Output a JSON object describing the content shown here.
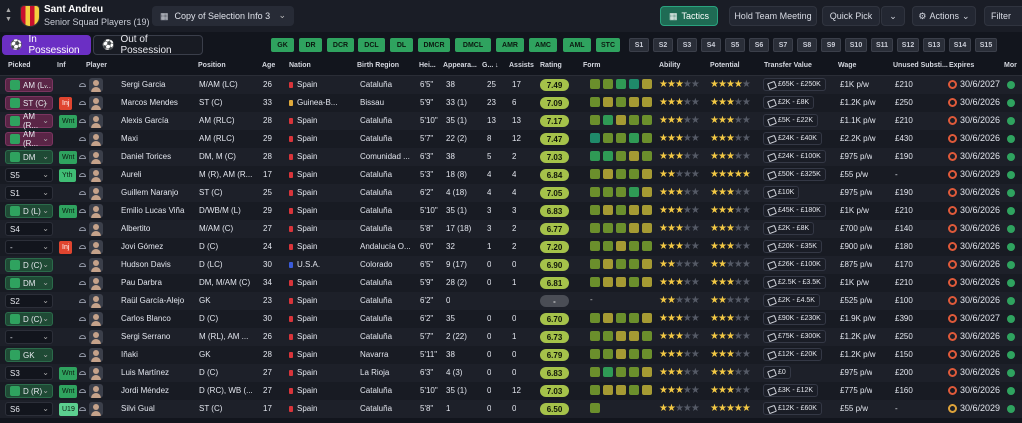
{
  "header": {
    "club": "Sant Andreu",
    "squad_select": "Senior Squad Players (19)",
    "view_select": "Copy of Selection Info 3",
    "tactics": "Tactics",
    "hold_meeting": "Hold Team Meeting",
    "quick_pick": "Quick Pick",
    "actions": "Actions",
    "filter": "Filter"
  },
  "tabs": {
    "in_possession": "In Possession",
    "out_possession": "Out of Possession"
  },
  "positions": {
    "highlighted": [
      "GK",
      "DR",
      "DCR",
      "DCL",
      "DL",
      "DMCR",
      "DMCL",
      "AMR",
      "AMC",
      "AML",
      "STC"
    ],
    "slots": [
      "S1",
      "S2",
      "S3",
      "S4",
      "S5",
      "S6",
      "S7",
      "S8",
      "S9",
      "S10",
      "S11",
      "S12",
      "S13",
      "S14",
      "S15"
    ]
  },
  "columns": {
    "picked": "Picked",
    "inf": "Inf",
    "player": "Player",
    "position": "Position",
    "age": "Age",
    "nation": "Nation",
    "birth_region": "Birth Region",
    "height": "Hei...",
    "appearances": "Appeara...",
    "goals": "G...",
    "assists": "Assists",
    "rating": "Rating",
    "form": "Form",
    "ability": "Ability",
    "potential": "Potential",
    "transfer_value": "Transfer Value",
    "wage": "Wage",
    "unused_subs": "Unused Substi...",
    "expires": "Expires",
    "more": "Mor"
  },
  "players": [
    {
      "pick": "AM (L...",
      "pick_style": "r",
      "inf": "",
      "name": "Sergi Garcia",
      "position": "M/AM (LC)",
      "age": "26",
      "nation": "Spain",
      "region": "Cataluña",
      "height": "6'5\"",
      "apps": "38",
      "goals": "25",
      "assists": "17",
      "rating": "7.49",
      "form": [
        "g",
        "g",
        "gg",
        "t",
        "y"
      ],
      "ability": 3,
      "potential": 4,
      "value": "£65K - £250K",
      "wage": "£1K p/w",
      "unused": "£210",
      "expires": "30/6/2027",
      "clock": "r"
    },
    {
      "pick": "ST (C)",
      "pick_style": "r",
      "inf": "Inj",
      "inf_style": "inj",
      "name": "Marcos Mendes",
      "position": "ST (C)",
      "age": "33",
      "nation": "Guinea-B...",
      "region": "Bissau",
      "height": "5'9\"",
      "apps": "33 (1)",
      "goals": "23",
      "assists": "6",
      "rating": "7.09",
      "form": [
        "g",
        "y",
        "g",
        "y",
        "y"
      ],
      "ability": 3,
      "potential": 3,
      "value": "£2K - £8K",
      "wage": "£1.2K p/w",
      "unused": "£250",
      "expires": "30/6/2026",
      "clock": "r"
    },
    {
      "pick": "AM (R...",
      "pick_style": "r",
      "inf": "Wnt",
      "inf_style": "wnt",
      "name": "Alexis García",
      "position": "AM (RLC)",
      "age": "28",
      "nation": "Spain",
      "region": "Cataluña",
      "height": "5'10\"",
      "apps": "35 (1)",
      "goals": "13",
      "assists": "13",
      "rating": "7.17",
      "form": [
        "g",
        "gg",
        "y",
        "g",
        "g"
      ],
      "ability": 3,
      "potential": 3,
      "value": "£5K - £22K",
      "wage": "£1.1K p/w",
      "unused": "£210",
      "expires": "30/6/2026",
      "clock": "r"
    },
    {
      "pick": "AM (R...",
      "pick_style": "r",
      "inf": "",
      "name": "Maxi",
      "position": "AM (RLC)",
      "age": "29",
      "nation": "Spain",
      "region": "Cataluña",
      "height": "5'7\"",
      "apps": "22 (2)",
      "goals": "8",
      "assists": "12",
      "rating": "7.47",
      "form": [
        "t",
        "g",
        "g",
        "gg",
        "g"
      ],
      "ability": 3,
      "potential": 3,
      "value": "£24K - £40K",
      "wage": "£2.2K p/w",
      "unused": "£430",
      "expires": "30/6/2026",
      "clock": "r"
    },
    {
      "pick": "DM",
      "pick_style": "g",
      "inf": "Wnt",
      "inf_style": "wnt",
      "name": "Daniel Torices",
      "position": "DM, M (C)",
      "age": "28",
      "nation": "Spain",
      "region": "Comunidad ...",
      "height": "6'3\"",
      "apps": "38",
      "goals": "5",
      "assists": "2",
      "rating": "7.03",
      "form": [
        "gg",
        "gg",
        "g",
        "y",
        "g"
      ],
      "ability": 3,
      "potential": 3,
      "value": "£24K - £100K",
      "wage": "£975 p/w",
      "unused": "£190",
      "expires": "30/6/2026",
      "clock": "r"
    },
    {
      "pick": "S5",
      "pick_style": "n",
      "inf": "Yth",
      "inf_style": "ylh",
      "name": "Aureli",
      "position": "M (R), AM (R...",
      "age": "17",
      "nation": "Spain",
      "region": "Cataluña",
      "height": "5'3\"",
      "apps": "18 (8)",
      "goals": "4",
      "assists": "4",
      "rating": "6.84",
      "form": [
        "g",
        "y",
        "g",
        "g",
        "y"
      ],
      "ability": 2,
      "potential": 5,
      "value": "£50K - £325K",
      "wage": "£55 p/w",
      "unused": "-",
      "expires": "30/6/2029",
      "clock": "r"
    },
    {
      "pick": "S1",
      "pick_style": "n",
      "inf": "",
      "name": "Guillem Naranjo",
      "position": "ST (C)",
      "age": "25",
      "nation": "Spain",
      "region": "Cataluña",
      "height": "6'2\"",
      "apps": "4 (18)",
      "goals": "4",
      "assists": "4",
      "rating": "7.05",
      "form": [
        "g",
        "g",
        "g",
        "gg",
        "y"
      ],
      "ability": 3,
      "potential": 3,
      "value": "£10K",
      "wage": "£975 p/w",
      "unused": "£190",
      "expires": "30/6/2026",
      "clock": "r"
    },
    {
      "pick": "D (L)",
      "pick_style": "g",
      "inf": "Wnt",
      "inf_style": "wnt",
      "name": "Emilio Lucas Viña",
      "position": "D/WB/M (L)",
      "age": "29",
      "nation": "Spain",
      "region": "Cataluña",
      "height": "5'10\"",
      "apps": "35 (1)",
      "goals": "3",
      "assists": "3",
      "rating": "6.83",
      "form": [
        "g",
        "y",
        "g",
        "y",
        "y"
      ],
      "ability": 3,
      "potential": 3,
      "value": "£45K - £180K",
      "wage": "£1K p/w",
      "unused": "£210",
      "expires": "30/6/2026",
      "clock": "r"
    },
    {
      "pick": "S4",
      "pick_style": "n",
      "inf": "",
      "name": "Albertito",
      "position": "M/AM (C)",
      "age": "27",
      "nation": "Spain",
      "region": "Cataluña",
      "height": "5'8\"",
      "apps": "17 (18)",
      "goals": "3",
      "assists": "2",
      "rating": "6.77",
      "form": [
        "g",
        "g",
        "g",
        "y",
        "y"
      ],
      "ability": 3,
      "potential": 3,
      "value": "£2K - £8K",
      "wage": "£700 p/w",
      "unused": "£140",
      "expires": "30/6/2026",
      "clock": "r"
    },
    {
      "pick": "-",
      "pick_style": "n",
      "inf": "Inj",
      "inf_style": "inj",
      "name": "Jovi Gómez",
      "position": "D (C)",
      "age": "24",
      "nation": "Spain",
      "region": "Andalucía O...",
      "height": "6'0\"",
      "apps": "32",
      "goals": "1",
      "assists": "2",
      "rating": "7.20",
      "form": [
        "g",
        "g",
        "y",
        "g",
        "g"
      ],
      "ability": 3,
      "potential": 3,
      "value": "£20K - £35K",
      "wage": "£900 p/w",
      "unused": "£180",
      "expires": "30/6/2026",
      "clock": "r"
    },
    {
      "pick": "D (C)",
      "pick_style": "g",
      "inf": "",
      "name": "Hudson Davis",
      "position": "D (LC)",
      "age": "30",
      "nation": "U.S.A.",
      "region": "Colorado",
      "height": "6'5\"",
      "apps": "9 (17)",
      "goals": "0",
      "assists": "0",
      "rating": "6.90",
      "form": [
        "g",
        "y",
        "g",
        "g",
        "y"
      ],
      "ability": 2,
      "potential": 2,
      "value": "£26K - £100K",
      "wage": "£875 p/w",
      "unused": "£170",
      "expires": "30/6/2026",
      "clock": "r"
    },
    {
      "pick": "DM",
      "pick_style": "g",
      "inf": "",
      "name": "Pau Darbra",
      "position": "DM, M/AM (C)",
      "age": "34",
      "nation": "Spain",
      "region": "Cataluña",
      "height": "5'9\"",
      "apps": "28 (2)",
      "goals": "0",
      "assists": "1",
      "rating": "6.81",
      "form": [
        "g",
        "y",
        "y",
        "g",
        "y"
      ],
      "ability": 3,
      "potential": 3,
      "value": "£2.5K - £3.5K",
      "wage": "£1K p/w",
      "unused": "£210",
      "expires": "30/6/2026",
      "clock": "r"
    },
    {
      "pick": "S2",
      "pick_style": "n",
      "inf": "",
      "name": "Raül García-Alejo",
      "position": "GK",
      "age": "23",
      "nation": "Spain",
      "region": "Cataluña",
      "height": "6'2\"",
      "apps": "0",
      "goals": "",
      "assists": "",
      "rating": "-",
      "form": [],
      "ability": 2,
      "potential": 2,
      "value": "£2K - £4.5K",
      "wage": "£525 p/w",
      "unused": "£100",
      "expires": "30/6/2026",
      "clock": "r"
    },
    {
      "pick": "D (C)",
      "pick_style": "g",
      "inf": "",
      "name": "Carlos Blanco",
      "position": "D (C)",
      "age": "30",
      "nation": "Spain",
      "region": "Cataluña",
      "height": "6'2\"",
      "apps": "35",
      "goals": "0",
      "assists": "0",
      "rating": "6.70",
      "form": [
        "g",
        "y",
        "g",
        "g",
        "y"
      ],
      "ability": 3,
      "potential": 3,
      "value": "£90K - £230K",
      "wage": "£1.9K p/w",
      "unused": "£390",
      "expires": "30/6/2027",
      "clock": "r"
    },
    {
      "pick": "-",
      "pick_style": "n",
      "inf": "",
      "name": "Sergi Serrano",
      "position": "M (RL), AM ...",
      "age": "26",
      "nation": "Spain",
      "region": "Cataluña",
      "height": "5'7\"",
      "apps": "2 (22)",
      "goals": "0",
      "assists": "1",
      "rating": "6.73",
      "form": [
        "g",
        "g",
        "y",
        "y",
        "g"
      ],
      "ability": 3,
      "potential": 3,
      "value": "£75K - £300K",
      "wage": "£1.2K p/w",
      "unused": "£250",
      "expires": "30/6/2026",
      "clock": "r"
    },
    {
      "pick": "GK",
      "pick_style": "g",
      "inf": "",
      "name": "Iñaki",
      "position": "GK",
      "age": "28",
      "nation": "Spain",
      "region": "Navarra",
      "height": "5'11\"",
      "apps": "38",
      "goals": "0",
      "assists": "0",
      "rating": "6.79",
      "form": [
        "g",
        "g",
        "y",
        "g",
        "g"
      ],
      "ability": 3,
      "potential": 3,
      "value": "£12K - £20K",
      "wage": "£1.2K p/w",
      "unused": "£150",
      "expires": "30/6/2026",
      "clock": "r"
    },
    {
      "pick": "S3",
      "pick_style": "n",
      "inf": "Wnt",
      "inf_style": "wnt",
      "name": "Luis Martínez",
      "position": "D (C)",
      "age": "27",
      "nation": "Spain",
      "region": "La Rioja",
      "height": "6'3\"",
      "apps": "4 (3)",
      "goals": "0",
      "assists": "0",
      "rating": "6.83",
      "form": [
        "g",
        "gg",
        "g",
        "g",
        "y"
      ],
      "ability": 3,
      "potential": 3,
      "value": "£0",
      "wage": "£975 p/w",
      "unused": "£200",
      "expires": "30/6/2026",
      "clock": "r"
    },
    {
      "pick": "D (R)",
      "pick_style": "g",
      "inf": "Wnt",
      "inf_style": "wnt",
      "name": "Jordi Méndez",
      "position": "D (RC), WB (...",
      "age": "27",
      "nation": "Spain",
      "region": "Cataluña",
      "height": "5'10\"",
      "apps": "35 (1)",
      "goals": "0",
      "assists": "12",
      "rating": "7.03",
      "form": [
        "g",
        "y",
        "y",
        "g",
        "y"
      ],
      "ability": 3,
      "potential": 3,
      "value": "£3K - £12K",
      "wage": "£775 p/w",
      "unused": "£160",
      "expires": "30/6/2026",
      "clock": "r"
    },
    {
      "pick": "S6",
      "pick_style": "n",
      "inf": "U19",
      "inf_style": "u19",
      "name": "Silvi Gual",
      "position": "ST (C)",
      "age": "17",
      "nation": "Spain",
      "region": "Cataluña",
      "height": "5'8\"",
      "apps": "1",
      "goals": "0",
      "assists": "0",
      "rating": "6.50",
      "form": [
        "g"
      ],
      "ability": 2,
      "potential": 5,
      "value": "£12K - £60K",
      "wage": "£55 p/w",
      "unused": "-",
      "expires": "30/6/2029",
      "clock": "o"
    }
  ]
}
